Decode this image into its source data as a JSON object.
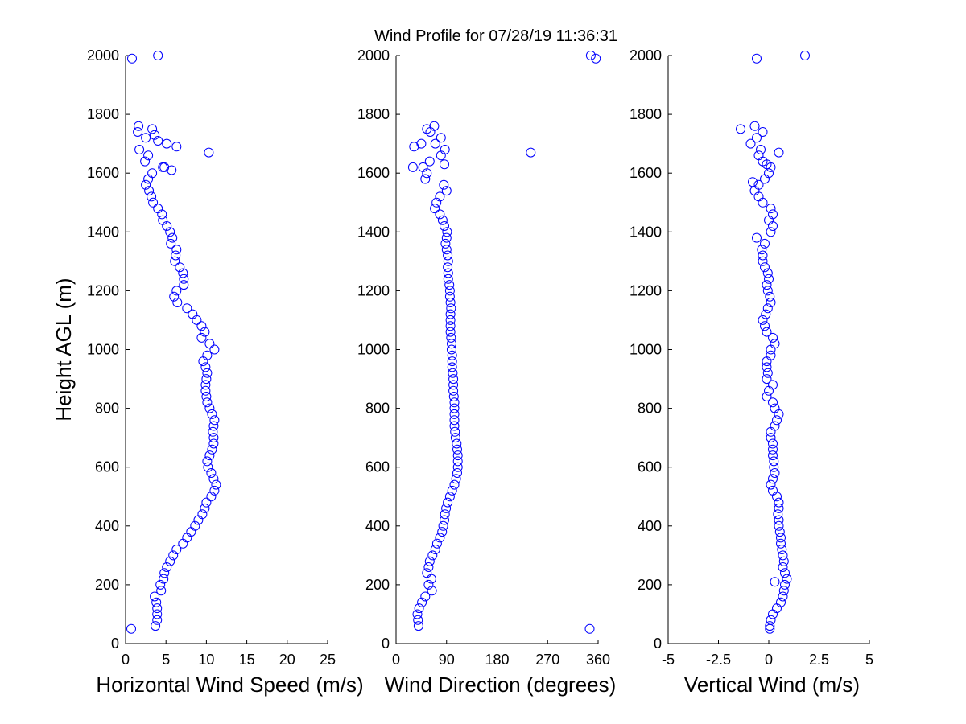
{
  "title": "Wind Profile for  07/28/19 11:36:31",
  "colors": {
    "marker": "#0000ff",
    "axis": "#000000",
    "background": "#ffffff"
  },
  "chart_data": [
    {
      "type": "scatter",
      "xlabel": "Horizontal Wind Speed (m/s)",
      "ylabel": "Height AGL (m)",
      "xlim": [
        0,
        25
      ],
      "ylim": [
        0,
        2000
      ],
      "xticks": [
        "0",
        "5",
        "10",
        "15",
        "20",
        "25"
      ],
      "yticks": [
        "0",
        "200",
        "400",
        "600",
        "800",
        "1000",
        "1200",
        "1400",
        "1600",
        "1800",
        "2000"
      ],
      "grid": false,
      "profile": [
        [
          60,
          3.7
        ],
        [
          80,
          3.9
        ],
        [
          100,
          3.9
        ],
        [
          120,
          3.9
        ],
        [
          140,
          3.8
        ],
        [
          160,
          3.6
        ],
        [
          180,
          4.4
        ],
        [
          200,
          4.3
        ],
        [
          220,
          4.7
        ],
        [
          240,
          4.8
        ],
        [
          260,
          5.1
        ],
        [
          280,
          5.5
        ],
        [
          300,
          5.9
        ],
        [
          320,
          6.3
        ],
        [
          340,
          7.1
        ],
        [
          360,
          7.6
        ],
        [
          380,
          8.1
        ],
        [
          400,
          8.6
        ],
        [
          420,
          9.0
        ],
        [
          440,
          9.5
        ],
        [
          460,
          9.8
        ],
        [
          480,
          10.0
        ],
        [
          500,
          10.6
        ],
        [
          520,
          11.0
        ],
        [
          540,
          11.2
        ],
        [
          560,
          10.9
        ],
        [
          580,
          10.6
        ],
        [
          600,
          10.2
        ],
        [
          620,
          10.1
        ],
        [
          640,
          10.4
        ],
        [
          660,
          10.7
        ],
        [
          680,
          10.9
        ],
        [
          700,
          10.9
        ],
        [
          720,
          10.8
        ],
        [
          740,
          10.9
        ],
        [
          760,
          11.0
        ],
        [
          780,
          10.7
        ],
        [
          800,
          10.4
        ],
        [
          820,
          10.1
        ],
        [
          840,
          10.0
        ],
        [
          860,
          9.9
        ],
        [
          880,
          9.9
        ],
        [
          900,
          10.0
        ],
        [
          920,
          10.1
        ],
        [
          940,
          9.9
        ],
        [
          960,
          9.6
        ],
        [
          980,
          10.1
        ],
        [
          1000,
          11.0
        ],
        [
          1020,
          10.4
        ],
        [
          1040,
          9.4
        ],
        [
          1060,
          9.8
        ],
        [
          1080,
          9.4
        ],
        [
          1100,
          8.8
        ],
        [
          1120,
          8.3
        ],
        [
          1140,
          7.6
        ],
        [
          1160,
          6.4
        ],
        [
          1180,
          6.0
        ],
        [
          1200,
          6.3
        ],
        [
          1220,
          7.2
        ],
        [
          1240,
          7.2
        ],
        [
          1260,
          7.1
        ],
        [
          1280,
          6.7
        ],
        [
          1300,
          6.1
        ],
        [
          1320,
          6.2
        ],
        [
          1340,
          6.3
        ],
        [
          1360,
          5.6
        ],
        [
          1380,
          5.8
        ],
        [
          1400,
          5.5
        ],
        [
          1420,
          5.1
        ],
        [
          1440,
          4.6
        ],
        [
          1460,
          4.5
        ],
        [
          1480,
          4.0
        ],
        [
          1500,
          3.4
        ],
        [
          1520,
          3.2
        ],
        [
          1540,
          2.9
        ],
        [
          1560,
          2.5
        ],
        [
          1580,
          2.8
        ],
        [
          1600,
          3.3
        ],
        [
          1620,
          4.8
        ],
        [
          1640,
          2.4
        ],
        [
          1660,
          2.8
        ],
        [
          1680,
          1.7
        ],
        [
          1700,
          5.1
        ],
        [
          1720,
          2.5
        ],
        [
          1740,
          1.5
        ],
        [
          1750,
          3.3
        ],
        [
          1760,
          1.6
        ]
      ],
      "outliers": [
        [
          50,
          0.7
        ],
        [
          1670,
          10.3
        ],
        [
          1690,
          6.3
        ],
        [
          1610,
          5.7
        ],
        [
          1710,
          4.0
        ],
        [
          1990,
          0.8
        ],
        [
          2000,
          4.0
        ],
        [
          1620,
          4.6
        ],
        [
          1730,
          3.6
        ]
      ]
    },
    {
      "type": "scatter",
      "xlabel": "Wind Direction (degrees)",
      "ylabel": "",
      "xlim": [
        0,
        360
      ],
      "ylim": [
        0,
        2000
      ],
      "xticks": [
        "0",
        "90",
        "180",
        "270",
        "360"
      ],
      "yticks": [
        "0",
        "200",
        "400",
        "600",
        "800",
        "1000",
        "1200",
        "1400",
        "1600",
        "1800",
        "2000"
      ],
      "grid": false,
      "profile": [
        [
          60,
          40
        ],
        [
          80,
          39
        ],
        [
          100,
          38
        ],
        [
          120,
          41
        ],
        [
          140,
          46
        ],
        [
          160,
          52
        ],
        [
          180,
          64
        ],
        [
          200,
          58
        ],
        [
          220,
          63
        ],
        [
          240,
          55
        ],
        [
          260,
          58
        ],
        [
          280,
          60
        ],
        [
          300,
          65
        ],
        [
          320,
          70
        ],
        [
          340,
          73
        ],
        [
          360,
          78
        ],
        [
          380,
          82
        ],
        [
          400,
          84
        ],
        [
          420,
          86
        ],
        [
          440,
          87
        ],
        [
          460,
          89
        ],
        [
          480,
          92
        ],
        [
          500,
          96
        ],
        [
          520,
          100
        ],
        [
          540,
          104
        ],
        [
          560,
          107
        ],
        [
          580,
          109
        ],
        [
          600,
          110
        ],
        [
          620,
          110
        ],
        [
          640,
          110
        ],
        [
          660,
          109
        ],
        [
          680,
          108
        ],
        [
          700,
          106
        ],
        [
          720,
          105
        ],
        [
          740,
          104
        ],
        [
          760,
          104
        ],
        [
          780,
          104
        ],
        [
          800,
          104
        ],
        [
          820,
          104
        ],
        [
          840,
          103
        ],
        [
          860,
          102
        ],
        [
          880,
          102
        ],
        [
          900,
          102
        ],
        [
          920,
          101
        ],
        [
          940,
          100
        ],
        [
          960,
          100
        ],
        [
          980,
          100
        ],
        [
          1000,
          99
        ],
        [
          1020,
          99
        ],
        [
          1040,
          98
        ],
        [
          1060,
          97
        ],
        [
          1080,
          97
        ],
        [
          1100,
          97
        ],
        [
          1120,
          97
        ],
        [
          1140,
          98
        ],
        [
          1160,
          97
        ],
        [
          1180,
          96
        ],
        [
          1200,
          96
        ],
        [
          1220,
          95
        ],
        [
          1240,
          93
        ],
        [
          1260,
          93
        ],
        [
          1280,
          92
        ],
        [
          1300,
          93
        ],
        [
          1320,
          92
        ],
        [
          1340,
          90
        ],
        [
          1360,
          88
        ],
        [
          1380,
          90
        ],
        [
          1400,
          91
        ],
        [
          1420,
          86
        ],
        [
          1440,
          83
        ],
        [
          1460,
          78
        ],
        [
          1480,
          69
        ],
        [
          1500,
          72
        ],
        [
          1520,
          78
        ],
        [
          1540,
          90
        ],
        [
          1560,
          85
        ],
        [
          1580,
          52
        ],
        [
          1600,
          55
        ],
        [
          1620,
          48
        ],
        [
          1640,
          60
        ],
        [
          1660,
          80
        ],
        [
          1680,
          87
        ],
        [
          1700,
          70
        ],
        [
          1720,
          80
        ],
        [
          1740,
          61
        ],
        [
          1760,
          68
        ]
      ],
      "outliers": [
        [
          50,
          345
        ],
        [
          1670,
          240
        ],
        [
          1990,
          356
        ],
        [
          2000,
          347
        ],
        [
          1620,
          30
        ],
        [
          1690,
          32
        ],
        [
          1700,
          45
        ],
        [
          1630,
          86
        ],
        [
          1750,
          55
        ]
      ]
    },
    {
      "type": "scatter",
      "xlabel": "Vertical Wind (m/s)",
      "ylabel": "",
      "xlim": [
        -5,
        5
      ],
      "ylim": [
        0,
        2000
      ],
      "xticks": [
        "-5",
        "-2.5",
        "0",
        "2.5",
        "5"
      ],
      "yticks": [
        "0",
        "200",
        "400",
        "600",
        "800",
        "1000",
        "1200",
        "1400",
        "1600",
        "1800",
        "2000"
      ],
      "grid": false,
      "profile": [
        [
          60,
          0.05
        ],
        [
          80,
          0.1
        ],
        [
          100,
          0.2
        ],
        [
          120,
          0.4
        ],
        [
          140,
          0.6
        ],
        [
          160,
          0.7
        ],
        [
          180,
          0.75
        ],
        [
          200,
          0.8
        ],
        [
          220,
          0.9
        ],
        [
          240,
          0.8
        ],
        [
          260,
          0.7
        ],
        [
          280,
          0.75
        ],
        [
          300,
          0.7
        ],
        [
          320,
          0.65
        ],
        [
          340,
          0.6
        ],
        [
          360,
          0.6
        ],
        [
          380,
          0.55
        ],
        [
          400,
          0.5
        ],
        [
          420,
          0.5
        ],
        [
          440,
          0.45
        ],
        [
          460,
          0.5
        ],
        [
          480,
          0.5
        ],
        [
          500,
          0.4
        ],
        [
          520,
          0.2
        ],
        [
          540,
          0.1
        ],
        [
          560,
          0.2
        ],
        [
          580,
          0.3
        ],
        [
          600,
          0.25
        ],
        [
          620,
          0.25
        ],
        [
          640,
          0.2
        ],
        [
          660,
          0.2
        ],
        [
          680,
          0.2
        ],
        [
          700,
          0.1
        ],
        [
          720,
          0.1
        ],
        [
          740,
          0.3
        ],
        [
          760,
          0.4
        ],
        [
          780,
          0.5
        ],
        [
          800,
          0.3
        ],
        [
          820,
          0.2
        ],
        [
          840,
          -0.1
        ],
        [
          860,
          0.0
        ],
        [
          880,
          0.2
        ],
        [
          900,
          -0.1
        ],
        [
          920,
          -0.05
        ],
        [
          940,
          -0.1
        ],
        [
          960,
          -0.1
        ],
        [
          980,
          0.1
        ],
        [
          1000,
          0.1
        ],
        [
          1020,
          0.3
        ],
        [
          1040,
          0.2
        ],
        [
          1060,
          -0.1
        ],
        [
          1080,
          -0.2
        ],
        [
          1100,
          -0.3
        ],
        [
          1120,
          -0.15
        ],
        [
          1140,
          -0.05
        ],
        [
          1160,
          0.1
        ],
        [
          1180,
          0.05
        ],
        [
          1200,
          -0.05
        ],
        [
          1220,
          -0.1
        ],
        [
          1240,
          0.0
        ],
        [
          1260,
          -0.05
        ],
        [
          1280,
          -0.2
        ],
        [
          1300,
          -0.3
        ],
        [
          1320,
          -0.3
        ],
        [
          1340,
          -0.35
        ],
        [
          1360,
          -0.2
        ],
        [
          1380,
          -0.6
        ],
        [
          1400,
          0.1
        ],
        [
          1420,
          0.2
        ],
        [
          1440,
          0.0
        ],
        [
          1460,
          0.2
        ],
        [
          1480,
          0.1
        ],
        [
          1500,
          -0.3
        ],
        [
          1520,
          -0.5
        ],
        [
          1540,
          -0.7
        ],
        [
          1560,
          -0.5
        ],
        [
          1580,
          -0.2
        ],
        [
          1600,
          0.0
        ],
        [
          1620,
          0.1
        ],
        [
          1640,
          -0.3
        ],
        [
          1660,
          -0.5
        ],
        [
          1680,
          -0.4
        ],
        [
          1700,
          -0.9
        ],
        [
          1720,
          -0.6
        ],
        [
          1740,
          -0.3
        ],
        [
          1750,
          -1.4
        ],
        [
          1760,
          -0.7
        ]
      ],
      "outliers": [
        [
          50,
          0.05
        ],
        [
          210,
          0.3
        ],
        [
          1670,
          0.5
        ],
        [
          1990,
          -0.6
        ],
        [
          2000,
          1.8
        ],
        [
          1570,
          -0.8
        ],
        [
          1630,
          -0.1
        ]
      ]
    }
  ]
}
